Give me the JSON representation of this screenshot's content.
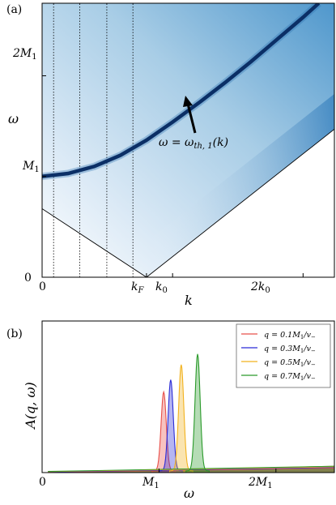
{
  "chart_data": [
    {
      "type": "heatmap",
      "panel_label": "(a)",
      "xlabel": "k",
      "ylabel": "ω",
      "xticks": [
        "0",
        "k_F",
        "k_0",
        "2k_0"
      ],
      "xticks_display": [
        {
          "base": "k",
          "sub": "F"
        },
        {
          "base": "k",
          "sub": "0"
        },
        {
          "base": "2k",
          "sub": "0"
        }
      ],
      "yticks": [
        "0",
        "M_1",
        "2M_1"
      ],
      "yticks_display": [
        {
          "base": "0",
          "sub": ""
        },
        {
          "base": "M",
          "sub": "1"
        },
        {
          "base": "2M",
          "sub": "1"
        }
      ],
      "annotation": "ω = ω_th,1(k)",
      "annotation_display": {
        "lhs": "ω = ω",
        "sub": "th, 1",
        "rhs": "(k)"
      },
      "curve": {
        "name": "ω_th,1(k)",
        "x": [
          0,
          0.25,
          0.5,
          0.75,
          1.0,
          1.25,
          1.5,
          1.75,
          2.0,
          2.25,
          2.5,
          2.65
        ],
        "y": [
          1.0,
          1.03,
          1.1,
          1.21,
          1.36,
          1.54,
          1.73,
          1.93,
          2.14,
          2.36,
          2.58,
          2.72
        ]
      },
      "continuum_edge": {
        "x": [
          0,
          1.0,
          2.8
        ],
        "y": [
          0.68,
          0.0,
          1.47
        ]
      },
      "vertical_dotted_lines_x": [
        0.11,
        0.36,
        0.62,
        0.87
      ],
      "xlim": [
        0,
        2.8
      ],
      "ylim": [
        0,
        2.72
      ],
      "colormap": "Blues"
    },
    {
      "type": "line",
      "panel_label": "(b)",
      "xlabel": "ω",
      "ylabel": "A(q, ω)",
      "xticks": [
        "0",
        "M_1",
        "2M_1"
      ],
      "xticks_display": [
        {
          "base": "0",
          "sub": ""
        },
        {
          "base": "M",
          "sub": "1"
        },
        {
          "base": "2M",
          "sub": "1"
        }
      ],
      "xlim": [
        0,
        2.5
      ],
      "ylim": [
        0,
        1.0
      ],
      "legend_position": "top-right",
      "series": [
        {
          "name": "q = 0.1 M_1/v_−",
          "legend": {
            "pre": "q = 0.1M",
            "sub1": "1",
            "mid": "/v",
            "sub2": "−"
          },
          "color": "#e8504a",
          "peak_x": 1.04,
          "peak_height": 0.52
        },
        {
          "name": "q = 0.3 M_1/v_−",
          "legend": {
            "pre": "q = 0.3M",
            "sub1": "1",
            "mid": "/v",
            "sub2": "−"
          },
          "color": "#2b2bd6",
          "peak_x": 1.1,
          "peak_height": 0.6
        },
        {
          "name": "q = 0.5 M_1/v_−",
          "legend": {
            "pre": "q = 0.5M",
            "sub1": "1",
            "mid": "/v",
            "sub2": "−"
          },
          "color": "#f2b21e",
          "peak_x": 1.19,
          "peak_height": 0.7
        },
        {
          "name": "q = 0.7 M_1/v_−",
          "legend": {
            "pre": "q = 0.7M",
            "sub1": "1",
            "mid": "/v",
            "sub2": "−"
          },
          "color": "#2a9a2a",
          "peak_x": 1.33,
          "peak_height": 0.77
        }
      ]
    }
  ]
}
